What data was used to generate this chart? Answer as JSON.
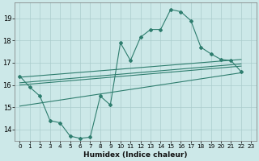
{
  "xlabel": "Humidex (Indice chaleur)",
  "ylabel": "",
  "xlim": [
    -0.5,
    23.5
  ],
  "ylim": [
    13.5,
    19.7
  ],
  "yticks": [
    14,
    15,
    16,
    17,
    18,
    19
  ],
  "xticks": [
    0,
    1,
    2,
    3,
    4,
    5,
    6,
    7,
    8,
    9,
    10,
    11,
    12,
    13,
    14,
    15,
    16,
    17,
    18,
    19,
    20,
    21,
    22,
    23
  ],
  "background_color": "#cce8e8",
  "grid_color": "#aacccc",
  "line_color": "#2e7d6e",
  "main_series": [
    [
      0,
      16.4
    ],
    [
      1,
      15.9
    ],
    [
      2,
      15.5
    ],
    [
      3,
      14.4
    ],
    [
      4,
      14.3
    ],
    [
      5,
      13.7
    ],
    [
      6,
      13.6
    ],
    [
      7,
      13.65
    ],
    [
      8,
      15.5
    ],
    [
      9,
      15.1
    ],
    [
      10,
      17.9
    ],
    [
      11,
      17.1
    ],
    [
      12,
      18.15
    ],
    [
      13,
      18.5
    ],
    [
      14,
      18.5
    ],
    [
      15,
      19.4
    ],
    [
      16,
      19.3
    ],
    [
      17,
      18.9
    ],
    [
      18,
      17.7
    ],
    [
      19,
      17.4
    ],
    [
      20,
      17.15
    ],
    [
      21,
      17.1
    ],
    [
      22,
      16.6
    ]
  ],
  "envelope_lines": [
    [
      [
        0,
        16.35
      ],
      [
        22,
        17.15
      ]
    ],
    [
      [
        0,
        16.1
      ],
      [
        22,
        16.95
      ]
    ],
    [
      [
        0,
        16.0
      ],
      [
        22,
        16.85
      ]
    ],
    [
      [
        0,
        15.05
      ],
      [
        22,
        16.55
      ]
    ]
  ]
}
